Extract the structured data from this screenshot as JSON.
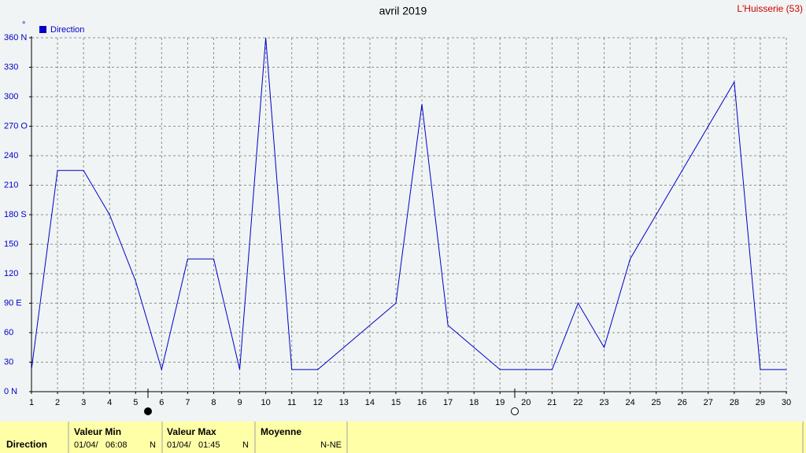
{
  "chart_data": {
    "type": "line",
    "title": "avril 2019",
    "station": "L'Huisserie (53)",
    "y_unit": "°",
    "x": [
      1,
      2,
      3,
      4,
      5,
      6,
      7,
      8,
      9,
      10,
      11,
      12,
      13,
      14,
      15,
      16,
      17,
      18,
      19,
      20,
      21,
      22,
      23,
      24,
      25,
      26,
      27,
      28,
      29,
      30
    ],
    "xlim": [
      1,
      30
    ],
    "xticks": [
      1,
      2,
      3,
      4,
      5,
      6,
      7,
      8,
      9,
      10,
      11,
      12,
      13,
      14,
      15,
      16,
      17,
      18,
      19,
      20,
      21,
      22,
      23,
      24,
      25,
      26,
      27,
      28,
      29,
      30
    ],
    "ylim": [
      0,
      360
    ],
    "yticks": [
      {
        "value": 0,
        "label": "0 N"
      },
      30,
      60,
      {
        "value": 90,
        "label": "90  E"
      },
      120,
      150,
      {
        "value": 180,
        "label": "180 S"
      },
      210,
      240,
      {
        "value": 270,
        "label": "270 O"
      },
      300,
      330,
      {
        "value": 360,
        "label": "360 N"
      }
    ],
    "grid": true,
    "series": [
      {
        "name": "Direction",
        "color": "#0000c8",
        "values": [
          22.5,
          225,
          225,
          180,
          112.5,
          22.5,
          135,
          135,
          22.5,
          360,
          22.5,
          22.5,
          45,
          67.5,
          90,
          292.5,
          67.5,
          45,
          22.5,
          22.5,
          22.5,
          90,
          45,
          135,
          180,
          225,
          270,
          315,
          22.5,
          22.5
        ]
      }
    ]
  },
  "summary": {
    "label": "Direction",
    "min_title": "Valeur Min",
    "min_date": "01/04/",
    "min_time": "06:08",
    "min_dir": "N",
    "max_title": "Valeur Max",
    "max_date": "01/04/",
    "max_time": "01:45",
    "max_dir": "N",
    "mean_title": "Moyenne",
    "mean_dir": "N-NE"
  }
}
